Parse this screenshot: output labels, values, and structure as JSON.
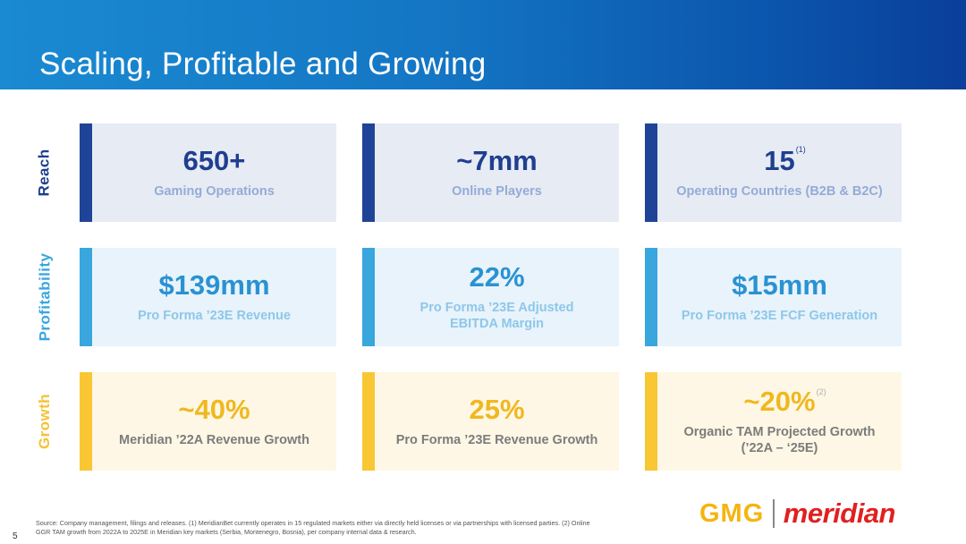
{
  "title": "Scaling, Profitable and Growing",
  "rows": [
    {
      "label": "Reach",
      "cards": [
        {
          "value": "650+",
          "caption_lines": [
            "Gaming Operations"
          ],
          "sup": ""
        },
        {
          "value": "~7mm",
          "caption_lines": [
            "Online Players"
          ],
          "sup": ""
        },
        {
          "value": "15",
          "caption_lines": [
            "Operating Countries (B2B & B2C)"
          ],
          "sup": "(1)"
        }
      ]
    },
    {
      "label": "Profitability",
      "cards": [
        {
          "value": "$139mm",
          "caption_lines": [
            "Pro Forma ’23E Revenue"
          ],
          "sup": ""
        },
        {
          "value": "22%",
          "caption_lines": [
            "Pro Forma ’23E Adjusted",
            "EBITDA Margin"
          ],
          "sup": ""
        },
        {
          "value": "$15mm",
          "caption_lines": [
            "Pro Forma ’23E FCF Generation"
          ],
          "sup": ""
        }
      ]
    },
    {
      "label": "Growth",
      "cards": [
        {
          "value": "~40%",
          "caption_lines": [
            "Meridian ’22A Revenue Growth"
          ],
          "sup": ""
        },
        {
          "value": "25%",
          "caption_lines": [
            "Pro Forma ’23E Revenue Growth"
          ],
          "sup": ""
        },
        {
          "value": "~20%",
          "caption_lines": [
            "Organic TAM Projected Growth",
            "(’22A – ‘25E)"
          ],
          "sup": "(2)"
        }
      ]
    }
  ],
  "footnote": {
    "line1": "Source: Company management, filings and releases. (1) MeridianBet currently operates in 15 regulated markets either via directly held licenses or via partnerships with licensed parties. (2) Online",
    "line2": "GGR TAM growth from 2022A to 2025E in Meridian key markets (Serbia, Montenegro, Bosnia), per company internal data & research."
  },
  "page_number": "5",
  "logo": {
    "left": "GMG",
    "right": "meridian"
  },
  "colors": {
    "reach": "#1f4497",
    "profitability": "#39a6de",
    "growth": "#f9c634",
    "gmg": "#f5b50f",
    "meridian": "#e1201f"
  }
}
